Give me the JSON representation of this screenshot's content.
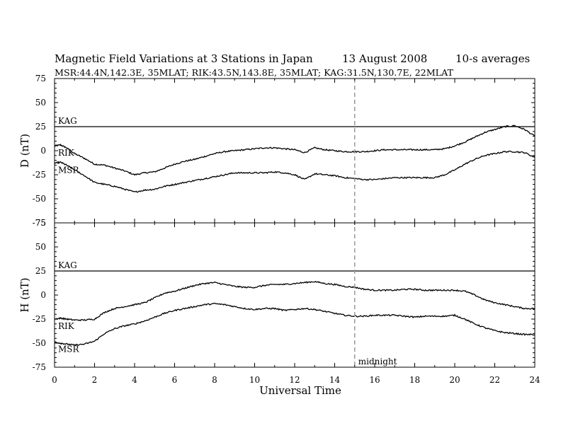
{
  "chart_data": {
    "type": "line",
    "title": "Magnetic Field Variations at 3 Stations in Japan",
    "date": "13  August  2008",
    "averaging": "10-s averages",
    "subtitle": "MSR:44.4N,142.3E, 35MLAT;  RIK:43.5N,143.8E, 35MLAT;  KAG:31.5N,130.7E, 22MLAT",
    "xlabel": "Universal Time",
    "xlim": [
      0,
      24
    ],
    "xticks": [
      "0",
      "2",
      "4",
      "6",
      "8",
      "10",
      "12",
      "14",
      "16",
      "18",
      "20",
      "22",
      "24"
    ],
    "annotation": {
      "text": "midnight",
      "x": 15
    },
    "panels": [
      {
        "ylabel": "D (nT)",
        "ylim": [
          -75,
          75
        ],
        "yticks": [
          "75",
          "50",
          "25",
          "0",
          "-25",
          "-50",
          "-75"
        ],
        "series": [
          {
            "name": "KAG",
            "x": [
              0,
              24
            ],
            "y": [
              25,
              25
            ]
          },
          {
            "name": "RIK",
            "x": [
              0,
              0.3,
              0.6,
              1,
              1.5,
              2,
              2.5,
              3,
              3.5,
              4,
              4.5,
              5,
              5.5,
              6,
              6.5,
              7,
              7.5,
              8,
              8.5,
              9,
              9.5,
              10,
              10.5,
              11,
              11.5,
              12,
              12.5,
              13,
              13.5,
              14,
              14.5,
              15,
              15.5,
              16,
              16.5,
              17,
              17.5,
              18,
              18.5,
              19,
              19.5,
              20,
              20.5,
              21,
              21.5,
              22,
              22.5,
              23,
              23.5,
              24
            ],
            "y": [
              5,
              6,
              3,
              -3,
              -8,
              -14,
              -15,
              -18,
              -21,
              -25,
              -23,
              -22,
              -18,
              -14,
              -11,
              -9,
              -6,
              -3,
              -1,
              0,
              1,
              2,
              3,
              3,
              2,
              1,
              -2,
              3,
              1,
              0,
              -1,
              -1,
              -1,
              0,
              1,
              1,
              1,
              1,
              1,
              1,
              2,
              5,
              9,
              14,
              19,
              22,
              25,
              26,
              22,
              15
            ]
          },
          {
            "name": "MSR",
            "x": [
              0,
              0.3,
              0.6,
              1,
              1.5,
              2,
              2.5,
              3,
              3.5,
              4,
              4.5,
              5,
              5.5,
              6,
              6.5,
              7,
              7.5,
              8,
              8.5,
              9,
              9.5,
              10,
              10.5,
              11,
              11.5,
              12,
              12.5,
              13,
              13.5,
              14,
              14.5,
              15,
              15.5,
              16,
              16.5,
              17,
              17.5,
              18,
              18.5,
              19,
              19.5,
              20,
              20.5,
              21,
              21.5,
              22,
              22.5,
              23,
              23.5,
              24
            ],
            "y": [
              -13,
              -12,
              -15,
              -20,
              -26,
              -33,
              -35,
              -37,
              -40,
              -43,
              -41,
              -40,
              -37,
              -35,
              -33,
              -31,
              -29,
              -27,
              -25,
              -23,
              -23,
              -23,
              -23,
              -22,
              -23,
              -25,
              -30,
              -24,
              -25,
              -26,
              -28,
              -29,
              -30,
              -30,
              -29,
              -28,
              -28,
              -28,
              -28,
              -28,
              -25,
              -20,
              -14,
              -9,
              -5,
              -3,
              -1,
              -1,
              -2,
              -7
            ]
          }
        ]
      },
      {
        "ylabel": "H (nT)",
        "ylim": [
          -75,
          75
        ],
        "yticks": [
          "75",
          "50",
          "25",
          "0",
          "-25",
          "-50",
          "-75"
        ],
        "series": [
          {
            "name": "KAG",
            "x": [
              0,
              24
            ],
            "y": [
              25,
              25
            ]
          },
          {
            "name": "RIK",
            "x": [
              0,
              0.3,
              0.6,
              1,
              1.5,
              2,
              2.5,
              3,
              3.5,
              4,
              4.5,
              5,
              5.5,
              6,
              6.5,
              7,
              7.5,
              8,
              8.5,
              9,
              9.5,
              10,
              10.5,
              11,
              11.5,
              12,
              12.5,
              13,
              13.5,
              14,
              14.5,
              15,
              15.5,
              16,
              16.5,
              17,
              17.5,
              18,
              18.5,
              19,
              19.5,
              20,
              20.5,
              21,
              21.5,
              22,
              22.5,
              23,
              23.5,
              24
            ],
            "y": [
              -25,
              -24,
              -25,
              -26,
              -26,
              -25,
              -18,
              -14,
              -12,
              -10,
              -8,
              -3,
              2,
              4,
              7,
              10,
              12,
              13,
              11,
              9,
              8,
              8,
              10,
              11,
              11,
              12,
              13,
              14,
              12,
              11,
              9,
              8,
              6,
              5,
              5,
              5,
              6,
              6,
              5,
              5,
              5,
              5,
              4,
              0,
              -5,
              -8,
              -10,
              -12,
              -14,
              -14
            ]
          },
          {
            "name": "MSR",
            "x": [
              0,
              0.3,
              0.6,
              1,
              1.5,
              2,
              2.5,
              3,
              3.5,
              4,
              4.5,
              5,
              5.5,
              6,
              6.5,
              7,
              7.5,
              8,
              8.5,
              9,
              9.5,
              10,
              10.5,
              11,
              11.5,
              12,
              12.5,
              13,
              13.5,
              14,
              14.5,
              15,
              15.5,
              16,
              16.5,
              17,
              17.5,
              18,
              18.5,
              19,
              19.5,
              20,
              20.5,
              21,
              21.5,
              22,
              22.5,
              23,
              23.5,
              24
            ],
            "y": [
              -49,
              -50,
              -51,
              -52,
              -51,
              -48,
              -40,
              -35,
              -32,
              -30,
              -27,
              -23,
              -19,
              -16,
              -14,
              -12,
              -10,
              -9,
              -10,
              -12,
              -14,
              -15,
              -14,
              -14,
              -16,
              -15,
              -14,
              -15,
              -17,
              -19,
              -21,
              -22,
              -22,
              -21,
              -21,
              -21,
              -22,
              -23,
              -22,
              -22,
              -22,
              -21,
              -25,
              -30,
              -34,
              -37,
              -39,
              -40,
              -41,
              -41
            ]
          }
        ]
      }
    ],
    "colors": {
      "line": "#000000",
      "midnight": "#999999"
    }
  }
}
